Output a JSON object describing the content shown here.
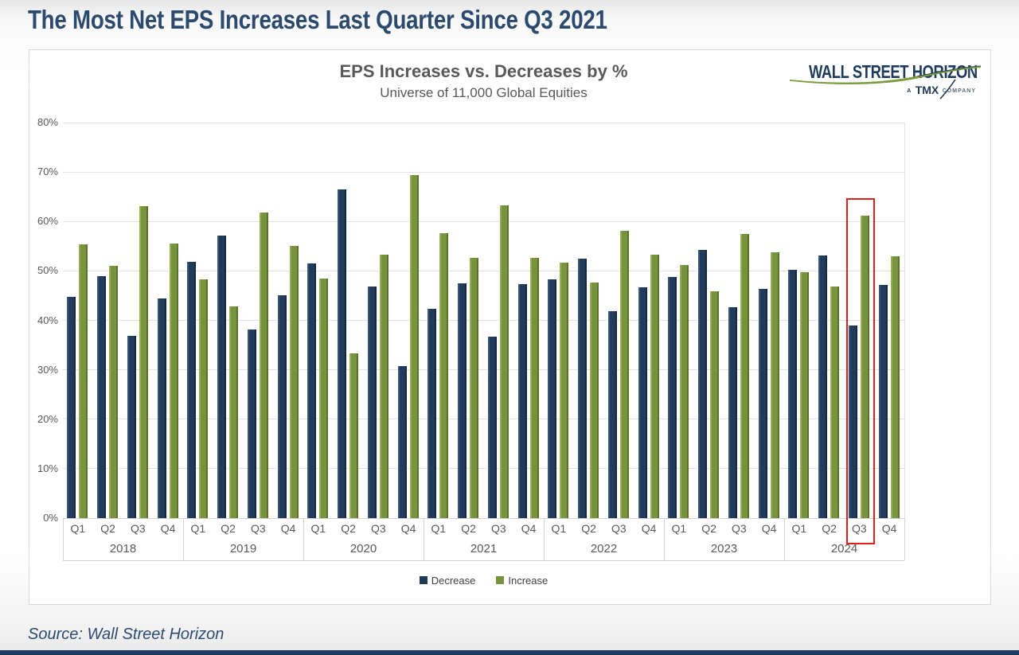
{
  "page": {
    "title": "The Most Net EPS Increases Last Quarter Since Q3 2021",
    "source": "Source: Wall Street Horizon"
  },
  "logo": {
    "name": "WALL STREET HORIZON",
    "tmx_prefix": "A",
    "tmx": "TMX",
    "tmx_suffix": "COMPANY"
  },
  "colors": {
    "decrease": "#1F3A58",
    "increase": "#78933D",
    "highlight": "#E3201B",
    "title_navy": "#2B4A6E",
    "chart_gray": "#595959"
  },
  "chart_data": {
    "type": "bar",
    "title": "EPS Increases vs. Decreases by %",
    "subtitle": "Universe of 11,000 Global Equities",
    "years": [
      "2018",
      "2019",
      "2020",
      "2021",
      "2022",
      "2023",
      "2024"
    ],
    "quarters_per_year": [
      "Q1",
      "Q2",
      "Q3",
      "Q4"
    ],
    "categories": [
      "2018 Q1",
      "2018 Q2",
      "2018 Q3",
      "2018 Q4",
      "2019 Q1",
      "2019 Q2",
      "2019 Q3",
      "2019 Q4",
      "2020 Q1",
      "2020 Q2",
      "2020 Q3",
      "2020 Q4",
      "2021 Q1",
      "2021 Q2",
      "2021 Q3",
      "2021 Q4",
      "2022 Q1",
      "2022 Q2",
      "2022 Q3",
      "2022 Q4",
      "2023 Q1",
      "2023 Q2",
      "2023 Q3",
      "2023 Q4",
      "2024 Q1",
      "2024 Q2",
      "2024 Q3",
      "2024 Q4"
    ],
    "series": [
      {
        "name": "Decrease",
        "color": "#1F3A58",
        "values": [
          44.8,
          49.0,
          36.8,
          44.4,
          51.8,
          57.2,
          38.2,
          45.0,
          51.5,
          66.5,
          46.8,
          30.7,
          42.3,
          47.5,
          36.7,
          47.4,
          48.3,
          52.4,
          41.9,
          46.7,
          48.8,
          54.2,
          42.6,
          46.3,
          50.3,
          53.1,
          38.9,
          47.1
        ]
      },
      {
        "name": "Increase",
        "color": "#78933D",
        "values": [
          55.3,
          51.0,
          63.1,
          55.6,
          48.3,
          42.8,
          61.8,
          55.0,
          48.5,
          33.4,
          53.3,
          69.3,
          57.6,
          52.6,
          63.3,
          52.6,
          51.7,
          47.6,
          58.1,
          53.3,
          51.2,
          45.8,
          57.4,
          53.7,
          49.7,
          46.9,
          61.1,
          53.0
        ]
      }
    ],
    "ylim": [
      0,
      80
    ],
    "ytick_step": 10,
    "ytick_labels": [
      "0%",
      "10%",
      "20%",
      "30%",
      "40%",
      "50%",
      "60%",
      "70%",
      "80%"
    ],
    "grid": true,
    "legend_position": "bottom",
    "highlight": {
      "year": "2024",
      "quarter": "Q3",
      "color": "#E3201B"
    }
  }
}
